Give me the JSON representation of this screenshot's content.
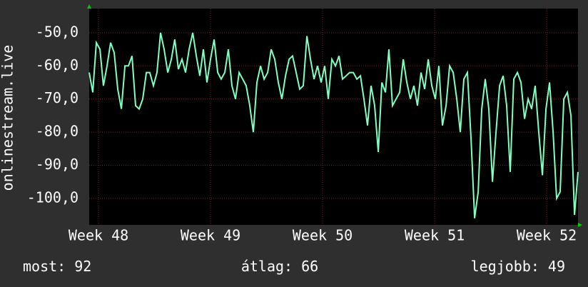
{
  "chart_data": {
    "type": "line",
    "y_label": "onlinestream.live",
    "xlim": [
      47.917,
      52.28
    ],
    "ylim": [
      -108,
      -42.7
    ],
    "xticks": [
      {
        "value": 48,
        "label": "Week 48"
      },
      {
        "value": 49,
        "label": "Week 49"
      },
      {
        "value": 50,
        "label": "Week 50"
      },
      {
        "value": 51,
        "label": "Week 51"
      },
      {
        "value": 52,
        "label": "Week 52"
      }
    ],
    "yticks": [
      {
        "value": -50,
        "label": "-50,0"
      },
      {
        "value": -60,
        "label": "-60,0"
      },
      {
        "value": -70,
        "label": "-70,0"
      },
      {
        "value": -80,
        "label": "-80,0"
      },
      {
        "value": -90,
        "label": "-90,0"
      },
      {
        "value": -100,
        "label": "-100,0"
      }
    ],
    "grid": true,
    "color": "#80ffc0",
    "x": [
      47.917,
      47.949,
      47.981,
      48.013,
      48.044,
      48.076,
      48.108,
      48.14,
      48.172,
      48.204,
      48.236,
      48.267,
      48.299,
      48.331,
      48.363,
      48.395,
      48.427,
      48.458,
      48.49,
      48.522,
      48.554,
      48.586,
      48.618,
      48.65,
      48.681,
      48.713,
      48.745,
      48.777,
      48.809,
      48.841,
      48.873,
      48.904,
      48.936,
      48.968,
      49.0,
      49.032,
      49.064,
      49.095,
      49.127,
      49.159,
      49.191,
      49.223,
      49.255,
      49.287,
      49.318,
      49.35,
      49.382,
      49.414,
      49.446,
      49.478,
      49.51,
      49.541,
      49.573,
      49.605,
      49.637,
      49.669,
      49.701,
      49.732,
      49.764,
      49.796,
      49.828,
      49.86,
      49.892,
      49.924,
      49.955,
      49.987,
      50.019,
      50.051,
      50.083,
      50.115,
      50.147,
      50.178,
      50.21,
      50.242,
      50.274,
      50.306,
      50.338,
      50.369,
      50.401,
      50.433,
      50.465,
      50.497,
      50.529,
      50.561,
      50.592,
      50.624,
      50.656,
      50.688,
      50.72,
      50.752,
      50.784,
      50.815,
      50.847,
      50.879,
      50.911,
      50.943,
      50.975,
      51.006,
      51.038,
      51.07,
      51.102,
      51.134,
      51.166,
      51.198,
      51.229,
      51.261,
      51.293,
      51.325,
      51.357,
      51.389,
      51.421,
      51.452,
      51.484,
      51.516,
      51.548,
      51.58,
      51.612,
      51.643,
      51.675,
      51.707,
      51.739,
      51.771,
      51.803,
      51.835,
      51.866,
      51.898,
      51.93,
      51.962,
      51.994,
      52.026,
      52.058,
      52.089,
      52.121,
      52.153,
      52.185,
      52.217,
      52.249,
      52.28
    ],
    "values": [
      -62,
      -68,
      -53,
      -55,
      -66,
      -60,
      -53,
      -56,
      -67,
      -73,
      -60,
      -60,
      -57,
      -72,
      -73,
      -70,
      -62,
      -62,
      -66,
      -62,
      -50,
      -55,
      -62,
      -58,
      -52,
      -61,
      -58,
      -62,
      -55,
      -50,
      -57,
      -63,
      -55,
      -65,
      -58,
      -52,
      -62,
      -64,
      -62,
      -55,
      -66,
      -70,
      -62,
      -64,
      -66,
      -72,
      -80,
      -65,
      -60,
      -64,
      -62,
      -55,
      -58,
      -65,
      -70,
      -63,
      -58,
      -57,
      -62,
      -67,
      -66,
      -51,
      -58,
      -64,
      -60,
      -65,
      -60,
      -70,
      -58,
      -60,
      -57,
      -64,
      -63,
      -62,
      -62,
      -64,
      -63,
      -70,
      -78,
      -66,
      -72,
      -86,
      -65,
      -68,
      -55,
      -72,
      -70,
      -68,
      -58,
      -65,
      -70,
      -66,
      -72,
      -62,
      -67,
      -58,
      -66,
      -70,
      -60,
      -78,
      -72,
      -60,
      -62,
      -70,
      -80,
      -64,
      -62,
      -82,
      -106,
      -98,
      -73,
      -64,
      -73,
      -95,
      -80,
      -66,
      -63,
      -72,
      -92,
      -64,
      -62,
      -65,
      -76,
      -70,
      -73,
      -66,
      -80,
      -93,
      -73,
      -65,
      -80,
      -100,
      -98,
      -70,
      -68,
      -75,
      -105,
      -92
    ],
    "stats": [
      {
        "label": "most:",
        "value": 92
      },
      {
        "label": "átlag:",
        "value": 66
      },
      {
        "label": "legjobb:",
        "value": 49
      }
    ]
  }
}
